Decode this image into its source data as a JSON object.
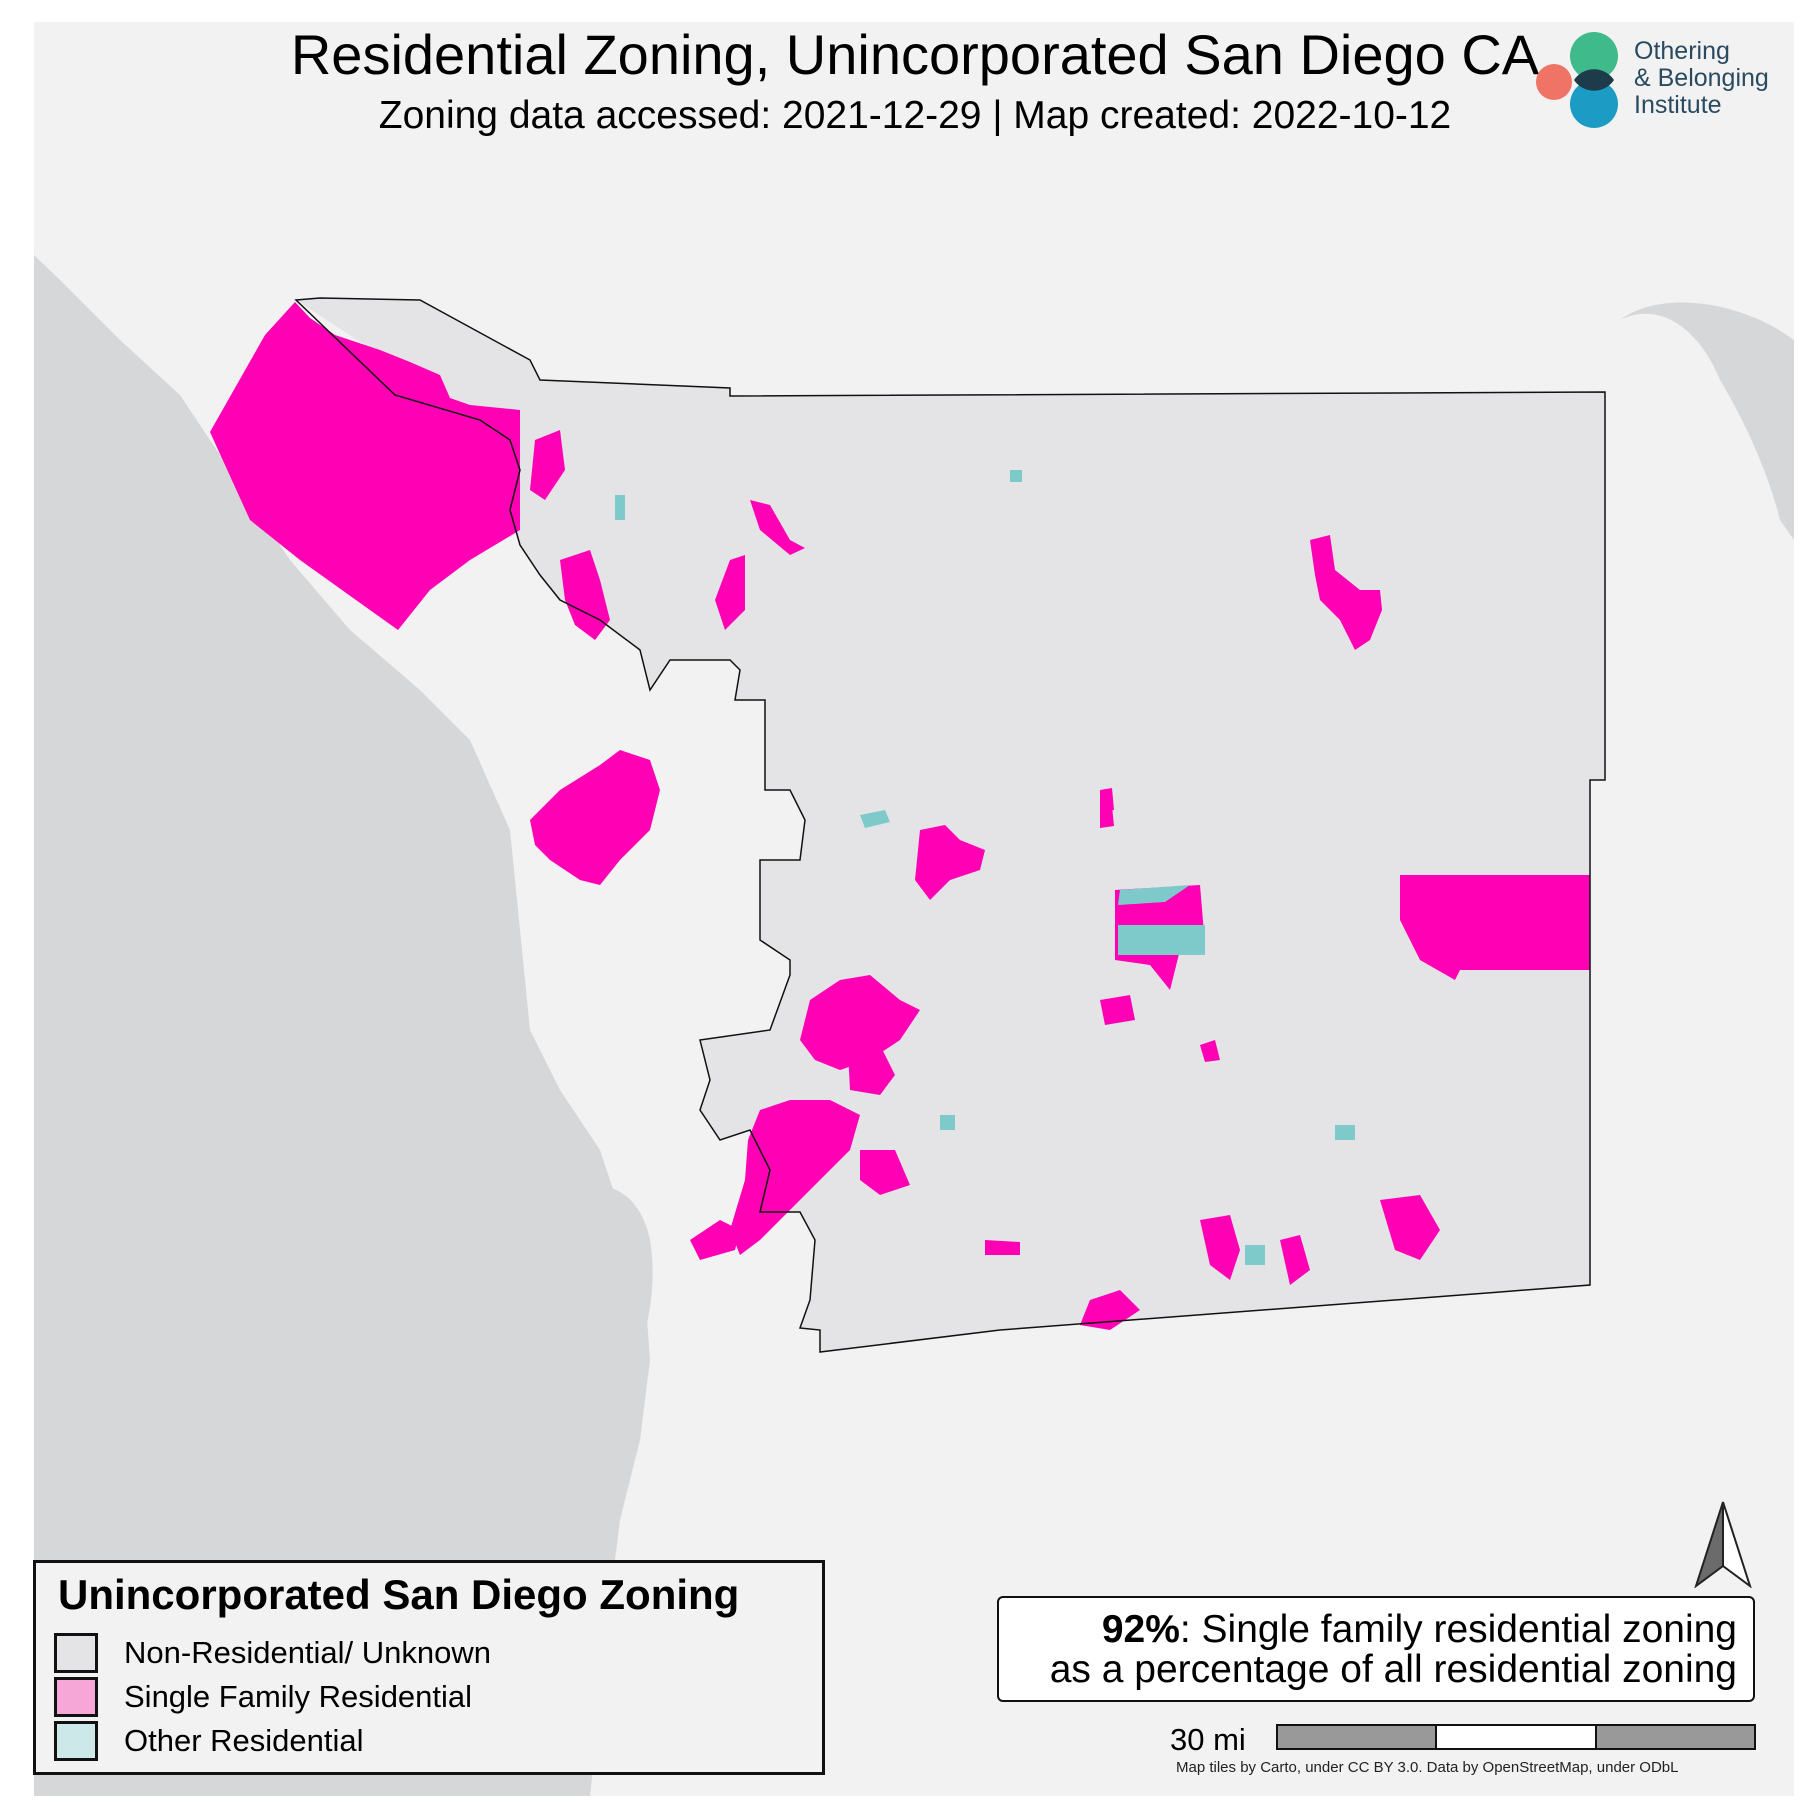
{
  "title": "Residential Zoning, Unincorporated San Diego CA",
  "subtitle": "Zoning data accessed: 2021-12-29 | Map created: 2022-10-12",
  "logo": {
    "line1": "Othering",
    "line2": "& Belonging",
    "line3": "Institute",
    "colors": {
      "green": "#3fba8a",
      "coral": "#f07466",
      "blue": "#1c9cc4",
      "dark": "#1d3b4a"
    }
  },
  "legend": {
    "title": "Unincorporated San Diego Zoning",
    "items": [
      {
        "label": "Non-Residential/ Unknown",
        "color": "#e4e4e6"
      },
      {
        "label": "Single Family Residential",
        "color": "#f7a6d8"
      },
      {
        "label": "Other Residential",
        "color": "#cde8e8"
      }
    ]
  },
  "stat": {
    "value": "92%",
    "text1": ": Single family residential zoning",
    "text2": "as a percentage of all residential zoning"
  },
  "scale": {
    "label": "30 mi"
  },
  "attribution": "Map tiles by Carto, under CC BY 3.0. Data by OpenStreetMap, under ODbL",
  "map_colors": {
    "non_residential": "#e4e4e6",
    "single_family": "#ff00b4",
    "other_residential": "#7ecaca",
    "water": "#d6d7d9",
    "land": "#f2f2f2",
    "boundary": "#111111"
  },
  "icons": {
    "north_arrow": "north-arrow-icon"
  }
}
